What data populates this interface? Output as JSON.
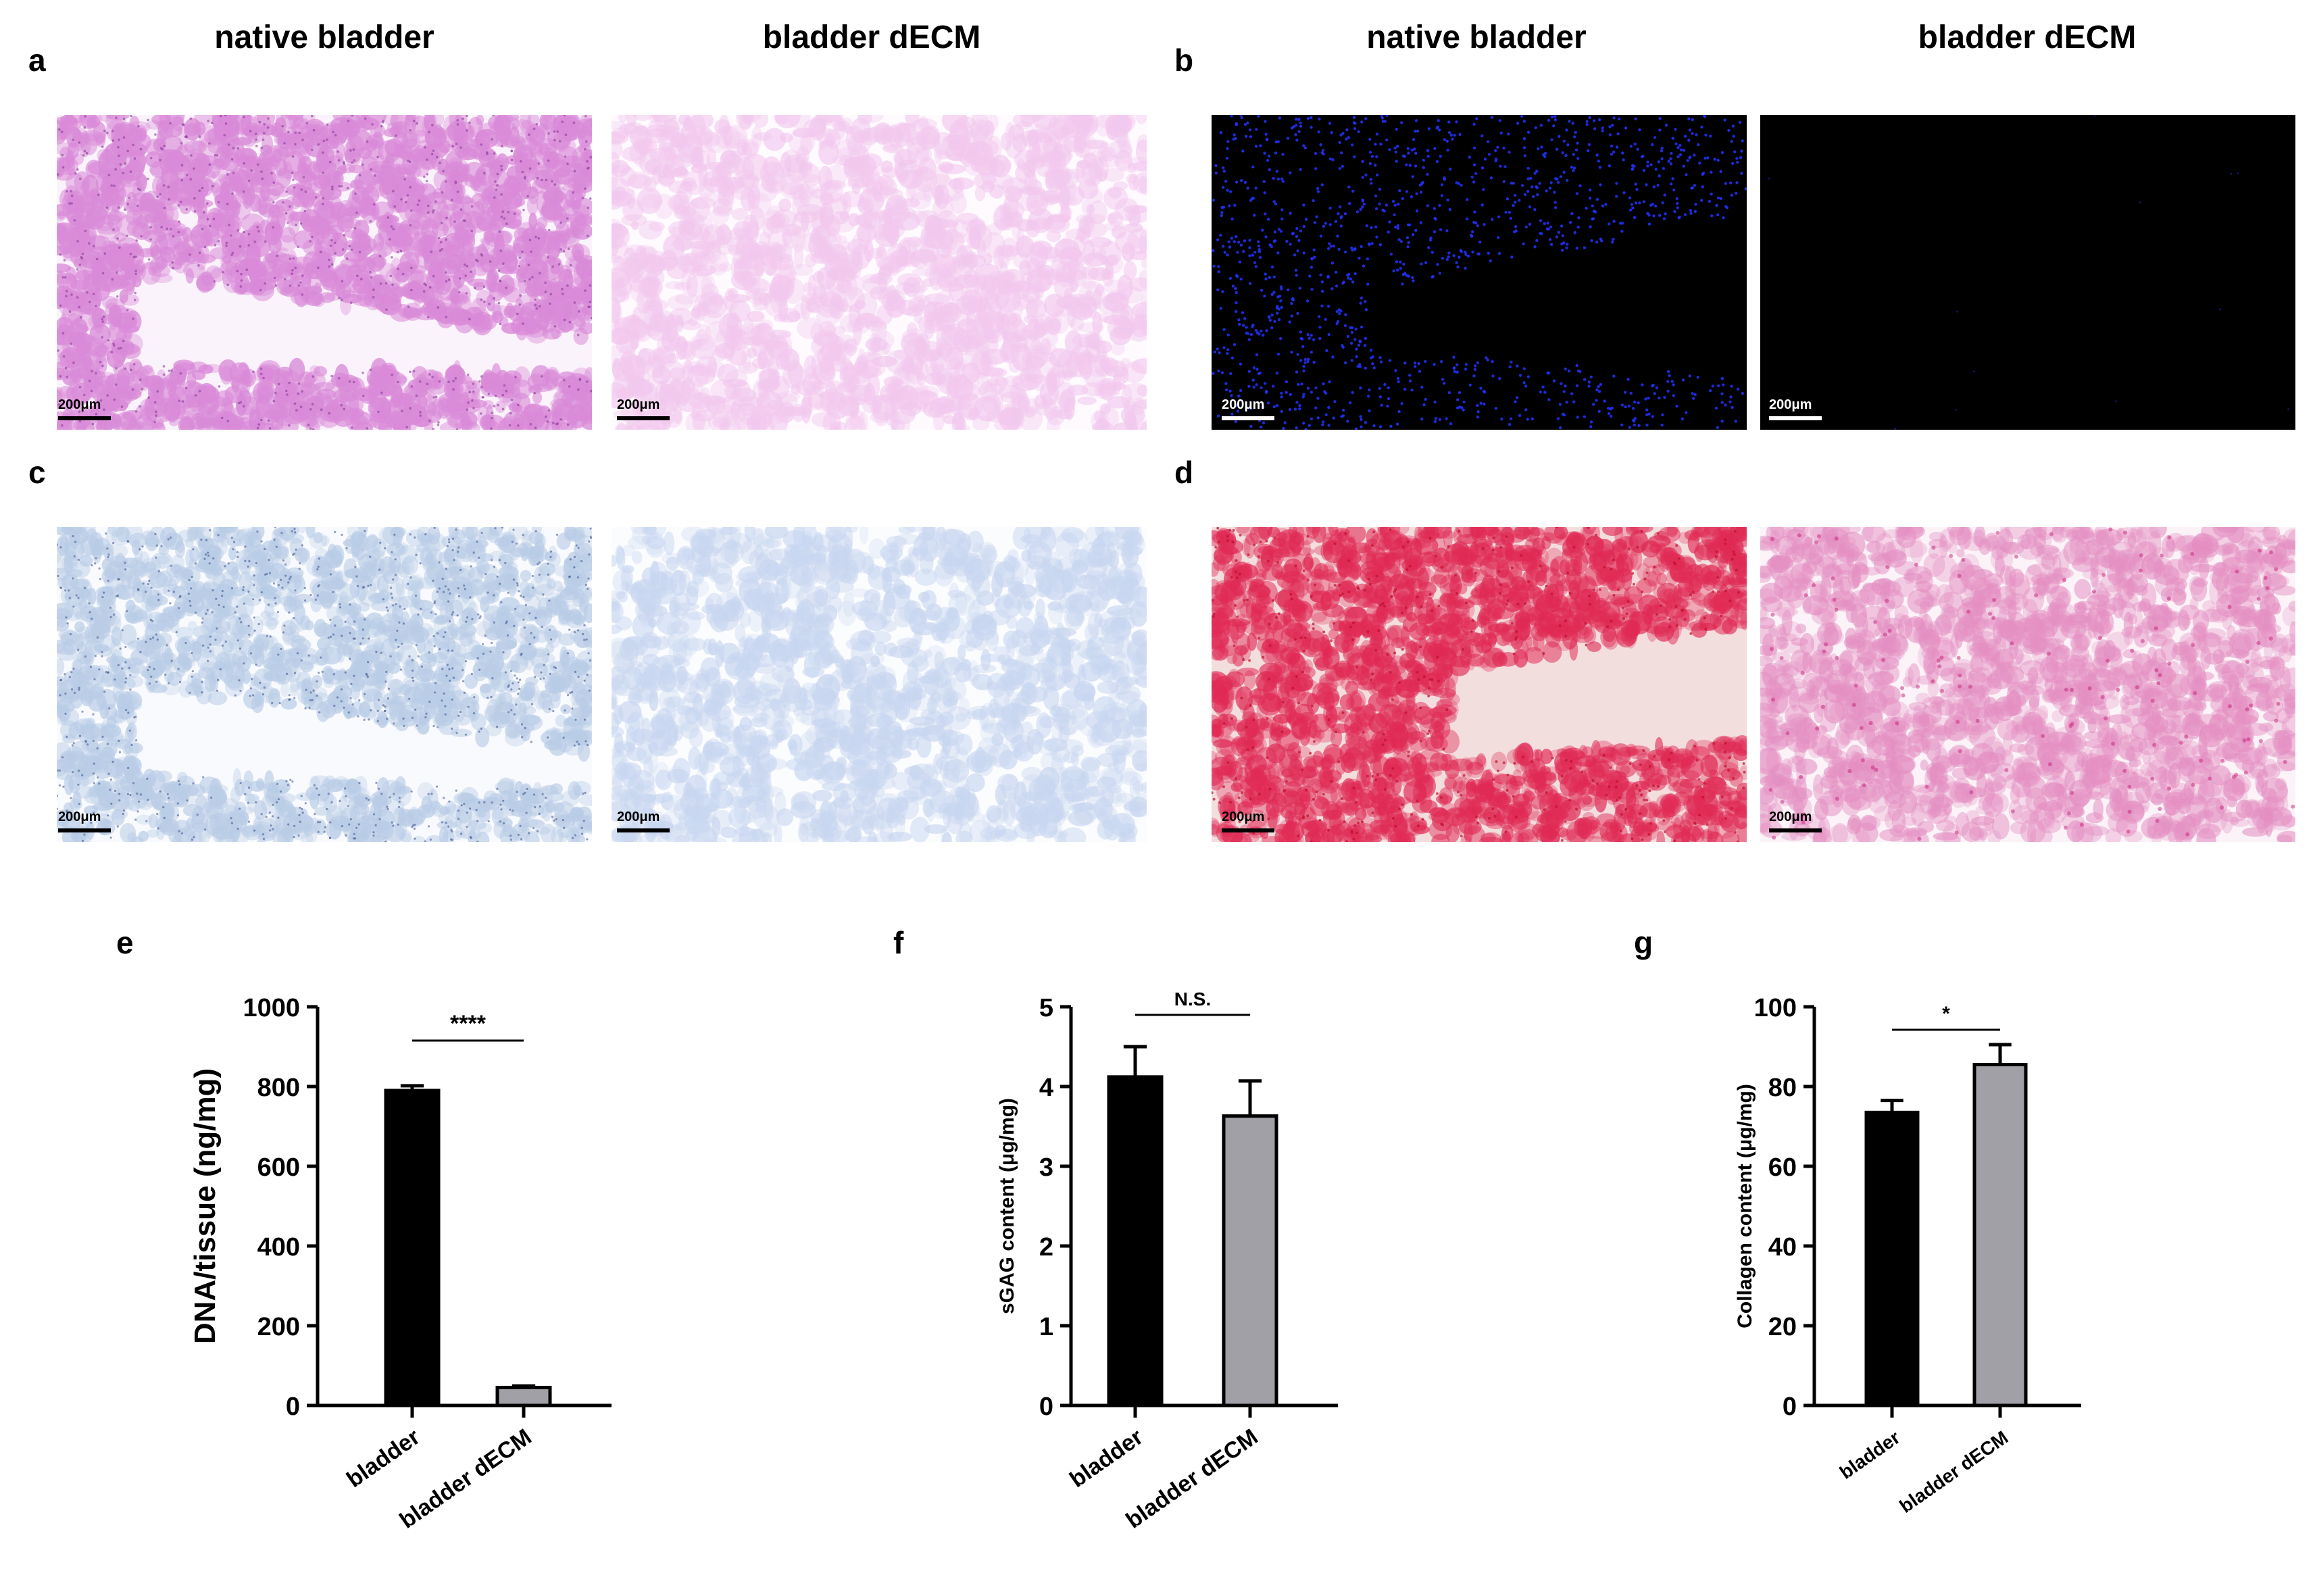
{
  "panel_labels": {
    "a": "a",
    "b": "b",
    "c": "c",
    "d": "d",
    "e": "e",
    "f": "f",
    "g": "g"
  },
  "column_titles": {
    "ab_left": "native bladder",
    "ab_right": "bladder dECM",
    "bd_left": "native bladder",
    "bd_right": "bladder dECM"
  },
  "scale_bar": "200μm",
  "stain_colors": {
    "he_native": "#d98ad8",
    "he_decm": "#f2c8ee",
    "dapi_bg": "#000000",
    "dapi_nuclei": "#2233ff",
    "alcian_native": "#b9cce6",
    "alcian_decm": "#c8d6f0",
    "sirius_native": "#e02a55",
    "sirius_decm": "#e48fc2"
  },
  "bar_colors": {
    "bladder": "#000000",
    "bladder dECM": "#a0a0a6"
  },
  "chart_data": [
    {
      "type": "bar",
      "panel": "e",
      "categories": [
        "bladder",
        "bladder dECM"
      ],
      "values": [
        790,
        45
      ],
      "errors": [
        12,
        4
      ],
      "ylabel": "DNA/tissue (ng/mg)",
      "ylim": [
        0,
        1000
      ],
      "yticks": [
        "0",
        "200",
        "400",
        "600",
        "800",
        "1000"
      ],
      "significance": "****"
    },
    {
      "type": "bar",
      "panel": "f",
      "categories": [
        "bladder",
        "bladder dECM"
      ],
      "values": [
        4.12,
        3.63
      ],
      "errors": [
        0.38,
        0.44
      ],
      "ylabel": "sGAG content (μg/mg)",
      "ylim": [
        0,
        5
      ],
      "yticks": [
        "0",
        "1",
        "2",
        "3",
        "4",
        "5"
      ],
      "significance": "N.S."
    },
    {
      "type": "bar",
      "panel": "g",
      "categories": [
        "bladder",
        "bladder dECM"
      ],
      "values": [
        73.5,
        85.5
      ],
      "errors": [
        3,
        5
      ],
      "ylabel": "Collagen content (μg/mg)",
      "ylim": [
        0,
        100
      ],
      "yticks": [
        "0",
        "20",
        "40",
        "60",
        "80",
        "100"
      ],
      "significance": "*"
    }
  ]
}
